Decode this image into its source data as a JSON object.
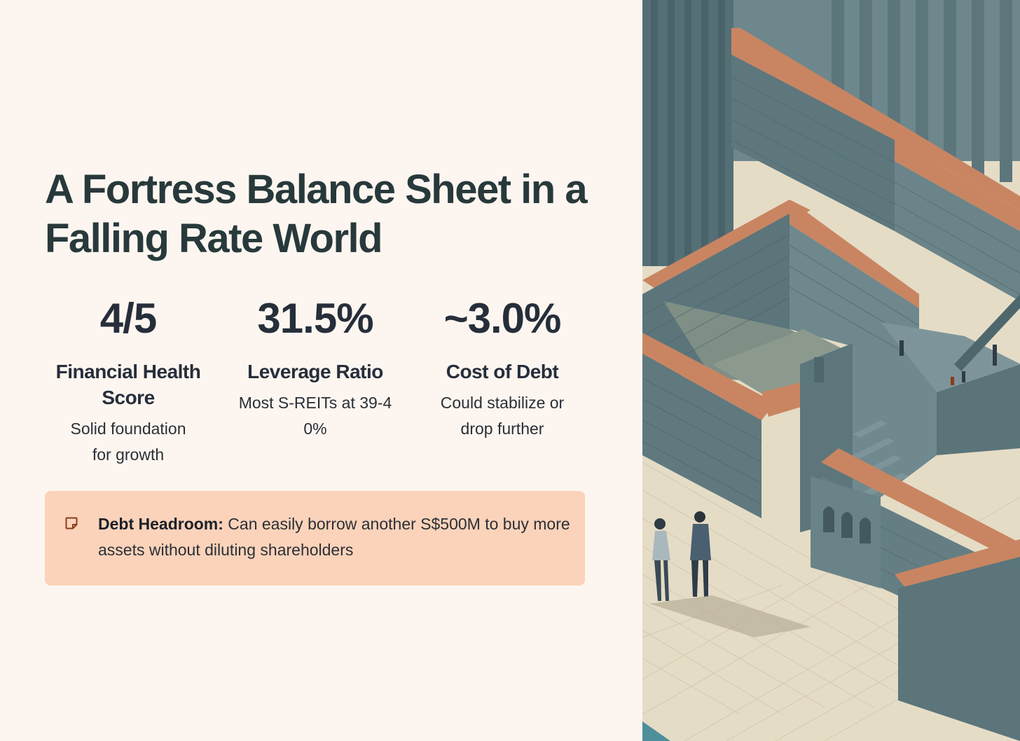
{
  "title": "A Fortress Balance Sheet in a Falling Rate World",
  "stats": [
    {
      "value": "4/5",
      "label": "Financial Health Score",
      "description": "Solid foundation for growth"
    },
    {
      "value": "31.5%",
      "label": "Leverage Ratio",
      "description": "Most S-REITs at 39-40%"
    },
    {
      "value": "~3.0%",
      "label": "Cost of Debt",
      "description": "Could stabilize or drop further"
    }
  ],
  "callout": {
    "icon": "sticky-note-icon",
    "heading": "Debt Headroom:",
    "text": " Can easily borrow another S$500M to buy more assets without diluting shareholders"
  },
  "colors": {
    "background": "#fdf6f0",
    "callout_bg": "#fbd3ba",
    "title": "#28393b",
    "wall": "#5f7a80",
    "accent_ledge": "#c98562",
    "floor": "#e5dcc6"
  }
}
